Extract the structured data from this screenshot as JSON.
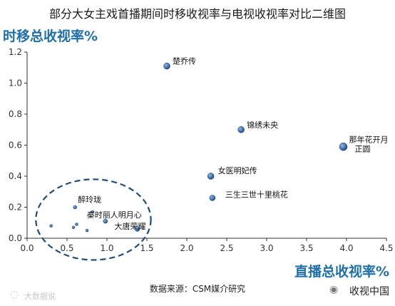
{
  "page": {
    "title": "部分大女主戏首播期间时移收视率与电视收视率对比二维图",
    "source": "数据来源：CSM媒介研究",
    "watermark_left": "大数据说",
    "watermark_right": "收视中国"
  },
  "chart_data": {
    "type": "scatter",
    "title": "部分大女主戏首播期间时移收视率与电视收视率对比二维图",
    "xlabel": "直播总收视率%",
    "ylabel": "时移总收视率%",
    "xlim": [
      0,
      4.5
    ],
    "ylim": [
      0,
      1.2
    ],
    "xticks": [
      "0.0",
      "0.5",
      "1.0",
      "1.5",
      "2.0",
      "2.5",
      "3.0",
      "3.5",
      "4.0",
      "4.5"
    ],
    "yticks": [
      "0.0",
      "0.2",
      "0.4",
      "0.6",
      "0.8",
      "1.0",
      "1.2"
    ],
    "grid": false,
    "colors": {
      "point": "#2a5d9a",
      "axis": "#333333",
      "ellipse": "#1f4e79"
    },
    "points": [
      {
        "x": 1.75,
        "y": 1.11,
        "label": "楚乔传",
        "size": 4.5
      },
      {
        "x": 2.68,
        "y": 0.7,
        "label": "锦绣未央",
        "size": 4.5
      },
      {
        "x": 3.96,
        "y": 0.59,
        "label": "那年花开月正圆",
        "size": 5.5
      },
      {
        "x": 2.3,
        "y": 0.4,
        "label": "女医明妃传",
        "size": 4.5
      },
      {
        "x": 2.32,
        "y": 0.26,
        "label": "三生三世十里桃花",
        "size": 4
      },
      {
        "x": 0.6,
        "y": 0.2,
        "label": "醉玲珑",
        "size": 2.5
      },
      {
        "x": 0.98,
        "y": 0.11,
        "label": "秦时丽人明月心",
        "size": 3
      },
      {
        "x": 1.38,
        "y": 0.06,
        "label": "大唐荣耀",
        "size": 3.5
      },
      {
        "x": 0.3,
        "y": 0.08,
        "label": "",
        "size": 2
      },
      {
        "x": 0.58,
        "y": 0.07,
        "label": "",
        "size": 2
      },
      {
        "x": 0.62,
        "y": 0.09,
        "label": "",
        "size": 2
      },
      {
        "x": 0.75,
        "y": 0.05,
        "label": "",
        "size": 2
      },
      {
        "x": 0.82,
        "y": 0.17,
        "label": "",
        "size": 2
      }
    ],
    "annotations": [
      {
        "type": "dashed-ellipse",
        "cx": 0.83,
        "cy": 0.12,
        "rx": 0.72,
        "ry": 0.26
      }
    ]
  }
}
